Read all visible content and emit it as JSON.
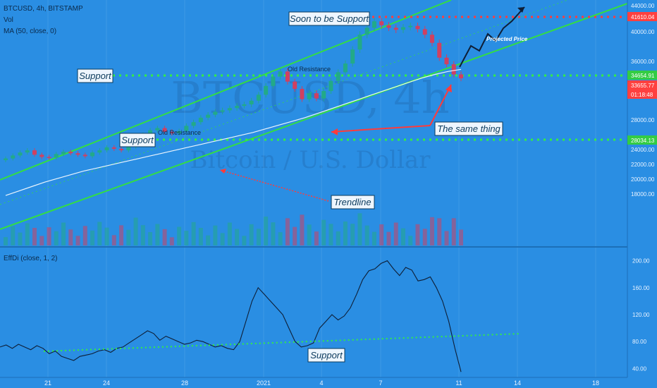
{
  "header": {
    "symbol_line": "BTCUSD, 4h, BITSTAMP",
    "vol_label": "Vol",
    "ma_label": "MA (50, close, 0)",
    "indicator_label": "EffDi (close, 1, 2)"
  },
  "watermark": {
    "main": "BTCUSD, 4h",
    "sub": "Bitcoin / U.S. Dollar"
  },
  "colors": {
    "background": "#2a8ee3",
    "channel": "#33dd44",
    "support_dots": "#33ee44",
    "resistance_dots": "#ff3b3b",
    "up_candle": "#22aa88",
    "down_candle": "#d04060",
    "ma_line": "#ffffff",
    "price_tag": "#ff4040"
  },
  "annotations": {
    "soon_support": "Soon to be Support",
    "support_upper": "Support",
    "support_lower": "Support",
    "old_resistance_upper": "Old Resistance",
    "old_resistance_lower": "Old Resistance",
    "same_thing": "The same thing",
    "trendline": "Trendline",
    "projected_price": "Projected Price",
    "indicator_support": "Support"
  },
  "price_axis": {
    "ticks": [
      "44000.00",
      "40000.00",
      "36000.00",
      "32000.00",
      "28000.00",
      "24000.00",
      "22000.00",
      "20000.00",
      "18000.00"
    ],
    "tags": {
      "top_level": "41610.04",
      "support_level": "34654.91",
      "current_price": "33655.77",
      "countdown": "01:18:48",
      "lower_support": "28034.13"
    }
  },
  "indicator_axis": {
    "ticks": [
      "200.00",
      "160.00",
      "120.00",
      "80.00",
      "40.00"
    ]
  },
  "date_axis": {
    "ticks": [
      "21",
      "24",
      "28",
      "2021",
      "4",
      "7",
      "11",
      "14",
      "18"
    ]
  },
  "chart_data": [
    {
      "type": "candlestick",
      "symbol": "BTCUSD",
      "timeframe": "4h",
      "exchange": "BITSTAMP",
      "x_ticks": [
        "21",
        "24",
        "28",
        "2021",
        "4",
        "7",
        "11",
        "14",
        "18"
      ],
      "ylim": [
        17000,
        44000
      ],
      "y_ticks": [
        44000,
        40000,
        36000,
        32000,
        28000,
        24000,
        22000,
        20000,
        18000
      ],
      "series": [
        {
          "name": "Price (approx. closes)",
          "values": [
            22800,
            23200,
            23600,
            23900,
            23300,
            23000,
            22900,
            23400,
            23700,
            23500,
            23300,
            23100,
            23600,
            23900,
            24300,
            24100,
            23900,
            24400,
            25300,
            26000,
            26600,
            26900,
            26400,
            26200,
            26500,
            27200,
            27700,
            28300,
            28700,
            29100,
            29300,
            29600,
            29900,
            30100,
            30600,
            31400,
            32600,
            33900,
            34600,
            33200,
            32200,
            30800,
            31600,
            30900,
            31900,
            33300,
            34500,
            35700,
            37600,
            39600,
            40600,
            41600,
            41000,
            40600,
            40300,
            40700,
            40900,
            40400,
            39600,
            38500,
            36500,
            35600,
            34200,
            33656
          ]
        },
        {
          "name": "MA (50, close, 0)",
          "values": [
            17800,
            18400,
            19000,
            19600,
            20100,
            20600,
            21100,
            21500,
            21900,
            22300,
            22700,
            23100,
            23500,
            23900,
            24300,
            24700,
            25100,
            25500,
            25900,
            26300,
            26800,
            27300,
            27800,
            28300,
            28900,
            29500,
            30100,
            30700,
            31300,
            31900,
            32500,
            33100,
            33700,
            34200,
            34600,
            34900
          ]
        }
      ],
      "levels": [
        {
          "name": "Soon to be Support",
          "value": 41610.04
        },
        {
          "name": "Support",
          "value": 34654.91
        },
        {
          "name": "Support",
          "value": 28034.13
        }
      ]
    },
    {
      "type": "line",
      "name": "EffDi (close, 1, 2)",
      "ylim": [
        30,
        210
      ],
      "y_ticks": [
        200,
        160,
        120,
        80,
        40
      ],
      "series": [
        {
          "name": "EffDi",
          "values": [
            72,
            75,
            70,
            76,
            72,
            68,
            74,
            70,
            62,
            66,
            58,
            55,
            52,
            58,
            60,
            62,
            66,
            68,
            64,
            70,
            72,
            78,
            84,
            90,
            96,
            92,
            82,
            88,
            84,
            80,
            76,
            78,
            82,
            80,
            76,
            72,
            74,
            70,
            68,
            80,
            110,
            140,
            160,
            150,
            140,
            130,
            120,
            100,
            80,
            72,
            74,
            78,
            100,
            110,
            120,
            112,
            118,
            130,
            150,
            172,
            185,
            188,
            196,
            200,
            188,
            178,
            190,
            186,
            170,
            172,
            176,
            160,
            140,
            110,
            70,
            35
          ]
        }
      ]
    }
  ]
}
